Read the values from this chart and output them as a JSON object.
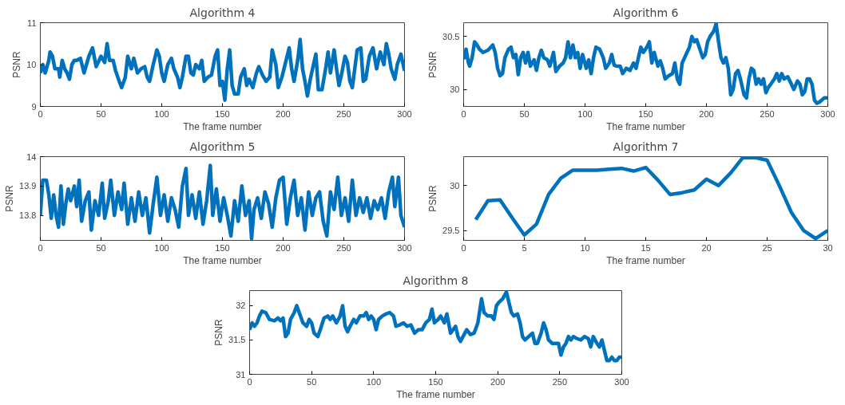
{
  "chart_data": [
    {
      "type": "line",
      "title": "Algorithm 4",
      "xlabel": "The frame number",
      "ylabel": "PSNR",
      "xlim": [
        0,
        300
      ],
      "ylim": [
        9,
        11
      ],
      "xticks": [
        0,
        50,
        100,
        150,
        200,
        250,
        300
      ],
      "yticks": [
        9,
        10,
        11
      ],
      "series": [
        {
          "color": "#0072bd",
          "x": [
            0,
            2,
            4,
            7,
            8,
            10,
            12,
            15,
            16,
            18,
            20,
            22,
            24,
            26,
            28,
            30,
            33,
            36,
            40,
            43,
            46,
            50,
            53,
            55,
            57,
            60,
            62,
            65,
            67,
            70,
            72,
            75,
            77,
            80,
            83,
            86,
            88,
            90,
            93,
            96,
            98,
            100,
            102,
            105,
            108,
            110,
            113,
            115,
            117,
            120,
            122,
            124,
            126,
            128,
            131,
            133,
            135,
            138,
            141,
            144,
            146,
            148,
            150,
            152,
            154,
            156,
            158,
            160,
            163,
            165,
            168,
            170,
            172,
            175,
            178,
            180,
            183,
            186,
            189,
            191,
            194,
            196,
            199,
            202,
            205,
            207,
            209,
            212,
            214,
            216,
            218,
            220,
            222,
            225,
            227,
            229,
            232,
            235,
            237,
            239,
            242,
            244,
            246,
            248,
            251,
            253,
            255,
            257,
            259,
            261,
            264,
            266,
            268,
            271,
            274,
            277,
            280,
            283,
            285,
            287,
            289,
            292,
            294,
            297,
            300
          ],
          "values": [
            9.8,
            10.0,
            9.8,
            10.1,
            10.3,
            10.2,
            9.9,
            9.9,
            9.7,
            10.1,
            9.9,
            9.8,
            9.65,
            10.0,
            10.1,
            10.1,
            10.15,
            9.8,
            10.2,
            10.4,
            9.95,
            10.2,
            10.05,
            10.5,
            10.1,
            10.1,
            9.85,
            9.6,
            9.45,
            9.7,
            10.2,
            9.9,
            10.15,
            9.8,
            9.9,
            9.95,
            9.7,
            9.6,
            10.0,
            10.35,
            10.2,
            9.8,
            9.6,
            10.0,
            10.15,
            9.9,
            9.7,
            9.45,
            9.7,
            10.2,
            10.2,
            9.8,
            9.75,
            10.0,
            9.9,
            10.1,
            9.6,
            9.7,
            9.75,
            10.2,
            10.35,
            9.5,
            9.6,
            9.15,
            9.9,
            10.35,
            9.5,
            9.3,
            9.3,
            9.7,
            9.9,
            9.5,
            9.65,
            9.45,
            9.8,
            9.95,
            9.75,
            9.6,
            9.7,
            10.35,
            10.0,
            9.45,
            9.7,
            10.05,
            10.4,
            9.9,
            9.6,
            10.1,
            10.6,
            9.9,
            9.6,
            9.25,
            9.6,
            10.0,
            10.25,
            9.4,
            9.4,
            9.9,
            10.3,
            9.8,
            10.35,
            9.9,
            9.5,
            9.75,
            10.2,
            10.05,
            9.6,
            9.45,
            9.9,
            10.35,
            10.4,
            9.6,
            9.65,
            10.2,
            10.4,
            9.9,
            10.3,
            10.0,
            10.5,
            10.25,
            9.9,
            9.65,
            10.0,
            10.25,
            9.85
          ]
        }
      ]
    },
    {
      "type": "line",
      "title": "Algorithm 6",
      "xlabel": "The frame number",
      "ylabel": "PSNR",
      "xlim": [
        0,
        300
      ],
      "ylim": [
        29.84,
        30.63
      ],
      "xticks": [
        0,
        50,
        100,
        150,
        200,
        250,
        300
      ],
      "yticks": [
        30,
        30.5
      ],
      "series": [
        {
          "color": "#0072bd",
          "x": [
            0,
            1,
            2,
            4,
            5,
            7,
            9,
            11,
            13,
            16,
            20,
            24,
            26,
            28,
            30,
            32,
            34,
            37,
            39,
            41,
            43,
            45,
            47,
            49,
            51,
            53,
            55,
            58,
            60,
            62,
            64,
            66,
            69,
            71,
            74,
            76,
            79,
            82,
            84,
            86,
            88,
            90,
            92,
            94,
            96,
            98,
            101,
            103,
            105,
            107,
            109,
            112,
            115,
            117,
            120,
            122,
            124,
            126,
            129,
            131,
            134,
            137,
            140,
            142,
            144,
            146,
            148,
            151,
            153,
            155,
            157,
            160,
            162,
            164,
            166,
            169,
            172,
            174,
            176,
            178,
            180,
            182,
            184,
            186,
            188,
            190,
            192,
            194,
            197,
            199,
            201,
            203,
            206,
            208,
            210,
            212,
            214,
            216,
            218,
            220,
            222,
            224,
            226,
            228,
            231,
            233,
            235,
            237,
            239,
            241,
            243,
            245,
            247,
            249,
            251,
            253,
            256,
            258,
            260,
            262,
            264,
            267,
            270,
            272,
            275,
            277,
            279,
            281,
            283,
            285,
            287,
            289,
            291,
            293,
            295,
            297,
            300
          ],
          "values": [
            30.35,
            30.3,
            30.38,
            30.25,
            30.22,
            30.3,
            30.45,
            30.42,
            30.38,
            30.35,
            30.37,
            30.42,
            30.35,
            30.2,
            30.13,
            30.15,
            30.3,
            30.38,
            30.4,
            30.3,
            30.33,
            30.14,
            30.3,
            30.35,
            30.25,
            30.35,
            30.22,
            30.28,
            30.18,
            30.3,
            30.37,
            30.3,
            30.28,
            30.22,
            30.35,
            30.17,
            30.22,
            30.25,
            30.3,
            30.45,
            30.3,
            30.42,
            30.3,
            30.35,
            30.2,
            30.33,
            30.2,
            30.28,
            30.15,
            30.3,
            30.4,
            30.38,
            30.3,
            30.2,
            30.25,
            30.33,
            30.23,
            30.22,
            30.22,
            30.15,
            30.2,
            30.18,
            30.25,
            30.2,
            30.3,
            30.4,
            30.35,
            30.4,
            30.45,
            30.25,
            30.35,
            30.22,
            30.27,
            30.2,
            30.1,
            30.13,
            30.15,
            30.25,
            30.1,
            30.05,
            30.25,
            30.3,
            30.35,
            30.4,
            30.5,
            30.45,
            30.47,
            30.4,
            30.3,
            30.33,
            30.45,
            30.5,
            30.55,
            30.62,
            30.45,
            30.3,
            30.25,
            30.3,
            30.2,
            29.95,
            30.0,
            30.15,
            30.18,
            30.1,
            29.95,
            29.92,
            30.1,
            30.2,
            30.18,
            30.05,
            30.1,
            30.05,
            30.1,
            29.97,
            30.02,
            30.05,
            30.1,
            30.15,
            30.08,
            30.15,
            30.1,
            30.12,
            30.05,
            30.0,
            30.08,
            30.05,
            29.95,
            29.98,
            30.1,
            30.1,
            30.05,
            29.9,
            29.87,
            29.88,
            29.9,
            29.92,
            29.92
          ]
        }
      ]
    },
    {
      "type": "line",
      "title": "Algorithm 5",
      "xlabel": "The frame number",
      "ylabel": "PSNR",
      "xlim": [
        0,
        300
      ],
      "ylim": [
        13.715,
        14
      ],
      "xticks": [
        0,
        50,
        100,
        150,
        200,
        250,
        300
      ],
      "yticks": [
        13.8,
        13.9,
        14
      ],
      "series": [
        {
          "color": "#0072bd",
          "x": [
            0,
            2,
            5,
            7,
            9,
            11,
            13,
            15,
            17,
            19,
            21,
            23,
            25,
            28,
            30,
            32,
            34,
            37,
            40,
            42,
            45,
            48,
            51,
            53,
            56,
            58,
            61,
            64,
            67,
            69,
            72,
            75,
            78,
            81,
            84,
            87,
            90,
            93,
            96,
            99,
            102,
            105,
            108,
            111,
            114,
            117,
            120,
            122,
            125,
            128,
            131,
            134,
            137,
            140,
            142,
            145,
            148,
            151,
            154,
            157,
            160,
            163,
            166,
            169,
            172,
            174,
            176,
            179,
            182,
            185,
            188,
            191,
            194,
            197,
            200,
            203,
            206,
            209,
            212,
            215,
            218,
            221,
            224,
            227,
            230,
            233,
            236,
            239,
            242,
            245,
            248,
            251,
            254,
            257,
            260,
            263,
            266,
            269,
            272,
            275,
            278,
            281,
            284,
            287,
            290,
            292,
            295,
            297,
            300
          ],
          "values": [
            13.8,
            13.92,
            13.92,
            13.87,
            13.79,
            13.87,
            13.8,
            13.76,
            13.9,
            13.77,
            13.84,
            13.89,
            13.85,
            13.9,
            13.83,
            13.92,
            13.78,
            13.85,
            13.88,
            13.75,
            13.85,
            13.8,
            13.91,
            13.79,
            13.85,
            13.92,
            13.8,
            13.88,
            13.82,
            13.91,
            13.77,
            13.86,
            13.78,
            13.88,
            13.8,
            13.86,
            13.74,
            13.84,
            13.93,
            13.8,
            13.87,
            13.78,
            13.86,
            13.82,
            13.76,
            13.9,
            13.96,
            13.8,
            13.87,
            13.79,
            13.88,
            13.77,
            13.85,
            13.97,
            13.8,
            13.89,
            13.78,
            13.86,
            13.8,
            13.73,
            13.85,
            13.78,
            13.9,
            13.8,
            13.85,
            13.72,
            13.82,
            13.86,
            13.79,
            13.88,
            13.84,
            13.76,
            13.86,
            13.92,
            13.93,
            13.77,
            13.86,
            13.92,
            13.8,
            13.86,
            13.75,
            13.88,
            13.8,
            13.86,
            13.88,
            13.78,
            13.73,
            13.88,
            13.82,
            13.93,
            13.8,
            13.86,
            13.78,
            13.92,
            13.8,
            13.86,
            13.81,
            13.86,
            13.79,
            13.85,
            13.82,
            13.86,
            13.79,
            13.88,
            13.93,
            13.83,
            13.93,
            13.8,
            13.76
          ]
        }
      ]
    },
    {
      "type": "line",
      "title": "Algorithm 7",
      "xlabel": "The frame number",
      "ylabel": "PSNR",
      "xlim": [
        0,
        30
      ],
      "ylim": [
        29.39,
        30.32
      ],
      "xticks": [
        0,
        5,
        10,
        15,
        20,
        25,
        30
      ],
      "yticks": [
        29.5,
        30
      ],
      "series": [
        {
          "color": "#0072bd",
          "x": [
            1,
            2,
            3,
            4,
            5,
            6,
            7,
            8,
            9,
            10,
            11,
            12,
            13,
            14,
            15,
            16,
            17,
            18,
            19,
            20,
            21,
            22,
            23,
            24,
            25,
            26,
            27,
            28,
            29,
            30
          ],
          "values": [
            29.62,
            29.83,
            29.84,
            29.64,
            29.45,
            29.57,
            29.9,
            30.08,
            30.17,
            30.17,
            30.17,
            30.18,
            30.19,
            30.16,
            30.2,
            30.06,
            29.9,
            29.92,
            29.95,
            30.07,
            30.0,
            30.14,
            30.31,
            30.31,
            30.28,
            30.0,
            29.7,
            29.5,
            29.41,
            29.5
          ]
        }
      ]
    },
    {
      "type": "line",
      "title": "Algorithm 8",
      "xlabel": "The frame number",
      "ylabel": "PSNR",
      "xlim": [
        0,
        300
      ],
      "ylim": [
        31,
        32.22
      ],
      "xticks": [
        0,
        50,
        100,
        150,
        200,
        250,
        300
      ],
      "yticks": [
        31,
        31.5,
        32
      ],
      "series": [
        {
          "color": "#0072bd",
          "x": [
            0,
            2,
            4,
            6,
            8,
            10,
            13,
            16,
            20,
            23,
            25,
            27,
            29,
            31,
            33,
            36,
            38,
            40,
            43,
            46,
            48,
            50,
            52,
            55,
            57,
            60,
            63,
            65,
            67,
            70,
            73,
            75,
            77,
            79,
            81,
            84,
            86,
            89,
            92,
            94,
            96,
            98,
            100,
            102,
            104,
            107,
            110,
            113,
            116,
            118,
            121,
            124,
            127,
            130,
            133,
            136,
            139,
            142,
            145,
            147,
            149,
            152,
            154,
            157,
            159,
            162,
            164,
            166,
            168,
            170,
            172,
            175,
            178,
            181,
            184,
            187,
            189,
            192,
            195,
            197,
            199,
            201,
            204,
            207,
            209,
            211,
            213,
            216,
            218,
            220,
            222,
            225,
            228,
            230,
            232,
            235,
            237,
            239,
            241,
            244,
            247,
            249,
            251,
            253,
            255,
            257,
            259,
            261,
            264,
            267,
            270,
            273,
            275,
            277,
            280,
            282,
            284,
            286,
            288,
            290,
            292,
            294,
            296,
            298,
            300
          ],
          "values": [
            31.65,
            31.75,
            31.7,
            31.75,
            31.85,
            31.92,
            31.9,
            31.8,
            31.78,
            31.82,
            31.78,
            31.82,
            31.55,
            31.6,
            31.8,
            31.9,
            32.0,
            31.9,
            31.75,
            31.7,
            31.8,
            31.75,
            31.6,
            31.55,
            31.65,
            31.82,
            31.85,
            31.8,
            31.85,
            31.75,
            31.85,
            32.0,
            31.7,
            31.62,
            31.7,
            31.8,
            31.75,
            31.85,
            31.85,
            31.9,
            31.8,
            31.85,
            31.8,
            31.65,
            31.8,
            31.85,
            31.88,
            31.9,
            31.85,
            31.7,
            31.72,
            31.75,
            31.7,
            31.72,
            31.6,
            31.65,
            31.65,
            31.75,
            31.8,
            31.95,
            31.75,
            31.8,
            31.85,
            31.75,
            31.88,
            31.6,
            31.65,
            31.7,
            31.55,
            31.48,
            31.55,
            31.65,
            31.58,
            31.6,
            31.75,
            32.1,
            31.9,
            31.85,
            31.85,
            31.8,
            32.0,
            32.05,
            32.1,
            32.2,
            32.05,
            31.9,
            31.85,
            31.88,
            31.75,
            31.55,
            31.5,
            31.55,
            31.6,
            31.45,
            31.45,
            31.6,
            31.75,
            31.65,
            31.5,
            31.45,
            31.45,
            31.45,
            31.28,
            31.4,
            31.45,
            31.55,
            31.5,
            31.55,
            31.52,
            31.5,
            31.55,
            31.52,
            31.4,
            31.55,
            31.45,
            31.4,
            31.5,
            31.35,
            31.2,
            31.2,
            31.25,
            31.2,
            31.2,
            31.25,
            31.25
          ]
        }
      ]
    }
  ]
}
